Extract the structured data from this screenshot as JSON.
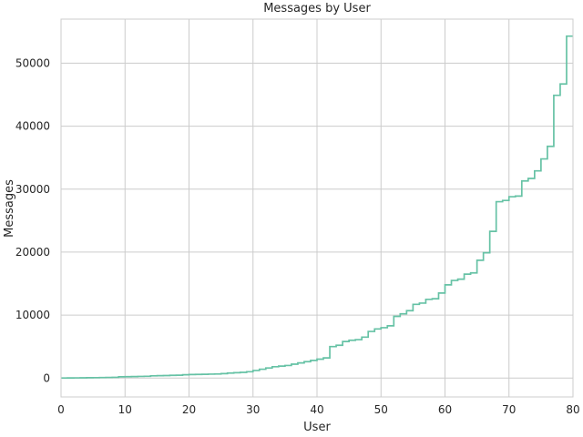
{
  "chart_data": {
    "type": "line",
    "drawstyle": "steps-post",
    "title": "Messages by User",
    "xlabel": "User",
    "ylabel": "Messages",
    "xlim": [
      0,
      80
    ],
    "ylim": [
      -3000,
      57000
    ],
    "x_ticks": [
      0,
      10,
      20,
      30,
      40,
      50,
      60,
      70,
      80
    ],
    "y_ticks": [
      0,
      10000,
      20000,
      30000,
      40000,
      50000
    ],
    "x_tick_labels": [
      "0",
      "10",
      "20",
      "30",
      "40",
      "50",
      "60",
      "70",
      "80"
    ],
    "y_tick_labels": [
      "0",
      "10000",
      "20000",
      "30000",
      "40000",
      "50000"
    ],
    "grid": true,
    "line_color": "#66c2a5",
    "series": [
      {
        "x": [
          0,
          1,
          2,
          3,
          4,
          5,
          6,
          7,
          8,
          9,
          10,
          11,
          12,
          13,
          14,
          15,
          16,
          17,
          18,
          19,
          20,
          21,
          22,
          23,
          24,
          25,
          26,
          27,
          28,
          29,
          30,
          31,
          32,
          33,
          34,
          35,
          36,
          37,
          38,
          39,
          40,
          41,
          42,
          43,
          44,
          45,
          46,
          47,
          48,
          49,
          50,
          51,
          52,
          53,
          54,
          55,
          56,
          57,
          58,
          59,
          60,
          61,
          62,
          63,
          64,
          65,
          66,
          67,
          68,
          69,
          70,
          71,
          72,
          73,
          74,
          75,
          76,
          77,
          78,
          79,
          80
        ],
        "values": [
          10,
          20,
          30,
          40,
          50,
          60,
          80,
          100,
          120,
          200,
          220,
          240,
          260,
          280,
          350,
          380,
          400,
          430,
          450,
          520,
          560,
          580,
          600,
          620,
          640,
          700,
          800,
          850,
          900,
          1000,
          1200,
          1400,
          1600,
          1800,
          1900,
          2000,
          2200,
          2400,
          2600,
          2800,
          3000,
          3200,
          5000,
          5200,
          5800,
          6000,
          6100,
          6500,
          7400,
          7800,
          8000,
          8300,
          9800,
          10200,
          10700,
          11700,
          11900,
          12500,
          12600,
          13500,
          14800,
          15500,
          15700,
          16500,
          16700,
          18700,
          19900,
          23300,
          28000,
          28200,
          28800,
          28900,
          31300,
          31700,
          32900,
          34800,
          36800,
          44900,
          46700,
          54300,
          54300
        ]
      }
    ]
  }
}
